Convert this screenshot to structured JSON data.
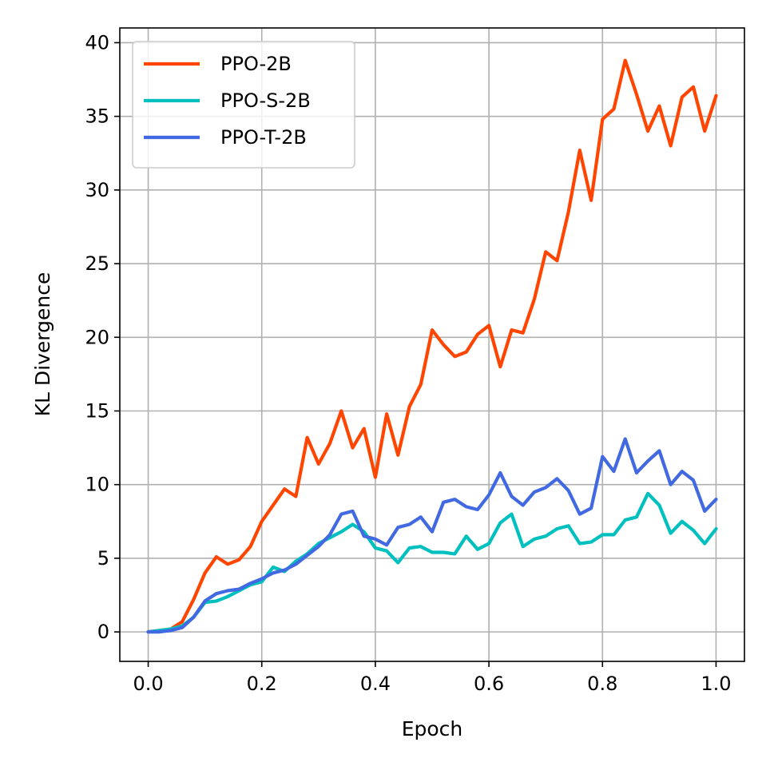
{
  "chart_data": {
    "type": "line",
    "title": "",
    "xlabel": "Epoch",
    "ylabel": "KL Divergence",
    "xlim": [
      -0.05,
      1.05
    ],
    "ylim": [
      -2,
      41
    ],
    "xticks": [
      0.0,
      0.2,
      0.4,
      0.6,
      0.8,
      1.0
    ],
    "xtick_labels": [
      "0.0",
      "0.2",
      "0.4",
      "0.6",
      "0.8",
      "1.0"
    ],
    "yticks": [
      0,
      5,
      10,
      15,
      20,
      25,
      30,
      35,
      40
    ],
    "ytick_labels": [
      "0",
      "5",
      "10",
      "15",
      "20",
      "25",
      "30",
      "35",
      "40"
    ],
    "grid": true,
    "legend_position": "top-left",
    "x": [
      0.0,
      0.02,
      0.04,
      0.06,
      0.08,
      0.1,
      0.12,
      0.14,
      0.16,
      0.18,
      0.2,
      0.22,
      0.24,
      0.26,
      0.28,
      0.3,
      0.32,
      0.34,
      0.36,
      0.38,
      0.4,
      0.42,
      0.44,
      0.46,
      0.48,
      0.5,
      0.52,
      0.54,
      0.56,
      0.58,
      0.6,
      0.62,
      0.64,
      0.66,
      0.68,
      0.7,
      0.72,
      0.74,
      0.76,
      0.78,
      0.8,
      0.82,
      0.84,
      0.86,
      0.88,
      0.9,
      0.92,
      0.94,
      0.96,
      0.98,
      1.0
    ],
    "series": [
      {
        "name": "PPO-2B",
        "color": "#ff4500",
        "values": [
          0.0,
          0.1,
          0.2,
          0.7,
          2.2,
          4.0,
          5.1,
          4.6,
          4.9,
          5.8,
          7.5,
          8.6,
          9.7,
          9.2,
          13.2,
          11.4,
          12.8,
          15.0,
          12.5,
          13.8,
          10.5,
          14.8,
          12.0,
          15.3,
          16.8,
          20.5,
          19.5,
          18.7,
          19.0,
          20.2,
          20.8,
          18.0,
          20.5,
          20.3,
          22.6,
          25.8,
          25.2,
          28.5,
          32.7,
          29.3,
          34.8,
          35.5,
          38.8,
          36.5,
          34.0,
          35.7,
          33.0,
          36.3,
          37.0,
          34.0,
          36.4
        ]
      },
      {
        "name": "PPO-S-2B",
        "color": "#00bfbf",
        "values": [
          0.0,
          0.1,
          0.2,
          0.4,
          1.0,
          2.0,
          2.1,
          2.4,
          2.8,
          3.2,
          3.4,
          4.4,
          4.1,
          4.8,
          5.3,
          6.0,
          6.4,
          6.8,
          7.3,
          6.8,
          5.7,
          5.5,
          4.7,
          5.7,
          5.8,
          5.4,
          5.4,
          5.3,
          6.5,
          5.6,
          6.0,
          7.4,
          8.0,
          5.8,
          6.3,
          6.5,
          7.0,
          7.2,
          6.0,
          6.1,
          6.6,
          6.6,
          7.6,
          7.8,
          9.4,
          8.6,
          6.7,
          7.5,
          6.9,
          6.0,
          7.0
        ]
      },
      {
        "name": "PPO-T-2B",
        "color": "#4169e1",
        "values": [
          0.0,
          0.0,
          0.1,
          0.3,
          1.0,
          2.1,
          2.6,
          2.8,
          2.9,
          3.3,
          3.6,
          4.0,
          4.2,
          4.6,
          5.2,
          5.8,
          6.6,
          8.0,
          8.2,
          6.5,
          6.3,
          5.9,
          7.1,
          7.3,
          7.8,
          6.8,
          8.8,
          9.0,
          8.5,
          8.3,
          9.3,
          10.8,
          9.2,
          8.6,
          9.5,
          9.8,
          10.4,
          9.6,
          8.0,
          8.4,
          11.9,
          10.9,
          13.1,
          10.8,
          11.6,
          12.3,
          10.0,
          10.9,
          10.3,
          8.2,
          9.0
        ]
      }
    ]
  }
}
